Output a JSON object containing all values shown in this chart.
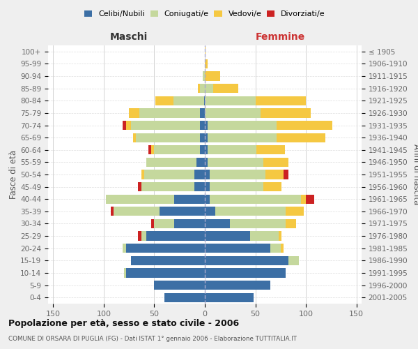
{
  "age_groups": [
    "0-4",
    "5-9",
    "10-14",
    "15-19",
    "20-24",
    "25-29",
    "30-34",
    "35-39",
    "40-44",
    "45-49",
    "50-54",
    "55-59",
    "60-64",
    "65-69",
    "70-74",
    "75-79",
    "80-84",
    "85-89",
    "90-94",
    "95-99",
    "100+"
  ],
  "birth_years": [
    "2001-2005",
    "1996-2000",
    "1991-1995",
    "1986-1990",
    "1981-1985",
    "1976-1980",
    "1971-1975",
    "1966-1970",
    "1961-1965",
    "1956-1960",
    "1951-1955",
    "1946-1950",
    "1941-1945",
    "1936-1940",
    "1931-1935",
    "1926-1930",
    "1921-1925",
    "1916-1920",
    "1911-1915",
    "1906-1910",
    "≤ 1905"
  ],
  "males": {
    "celibi": [
      40,
      50,
      78,
      73,
      78,
      58,
      30,
      45,
      30,
      10,
      10,
      8,
      5,
      5,
      5,
      5,
      1,
      0,
      0,
      0,
      0
    ],
    "coniugati": [
      0,
      0,
      2,
      0,
      3,
      5,
      20,
      45,
      68,
      53,
      50,
      50,
      45,
      63,
      68,
      60,
      30,
      5,
      2,
      0,
      0
    ],
    "vedovi": [
      0,
      0,
      0,
      0,
      0,
      0,
      0,
      0,
      0,
      0,
      3,
      0,
      3,
      3,
      5,
      10,
      18,
      2,
      0,
      0,
      0
    ],
    "divorziati": [
      0,
      0,
      0,
      0,
      0,
      3,
      3,
      3,
      0,
      3,
      0,
      0,
      3,
      0,
      3,
      0,
      0,
      0,
      0,
      0,
      0
    ]
  },
  "females": {
    "nubili": [
      48,
      65,
      80,
      83,
      65,
      45,
      25,
      10,
      5,
      5,
      5,
      3,
      3,
      3,
      3,
      0,
      0,
      0,
      0,
      0,
      0
    ],
    "coniugate": [
      0,
      0,
      0,
      10,
      10,
      28,
      55,
      70,
      90,
      53,
      55,
      55,
      48,
      68,
      68,
      55,
      50,
      8,
      0,
      0,
      0
    ],
    "vedove": [
      0,
      0,
      0,
      0,
      3,
      3,
      10,
      18,
      5,
      18,
      18,
      25,
      28,
      48,
      55,
      50,
      50,
      25,
      15,
      3,
      1
    ],
    "divorziate": [
      0,
      0,
      0,
      0,
      0,
      0,
      0,
      0,
      8,
      0,
      5,
      0,
      0,
      0,
      0,
      0,
      0,
      0,
      0,
      0,
      0
    ]
  },
  "colors": {
    "celibi_nubili": "#3c6fa5",
    "coniugati_e": "#c5d89d",
    "vedovi_e": "#f5c842",
    "divorziati_e": "#cc2222"
  },
  "title": "Popolazione per età, sesso e stato civile - 2006",
  "subtitle": "COMUNE DI ORSARA DI PUGLIA (FG) - Dati ISTAT 1° gennaio 2006 - Elaborazione TUTTITALIA.IT",
  "xlabel_left": "Maschi",
  "xlabel_right": "Femmine",
  "ylabel_left": "Fasce di età",
  "ylabel_right": "Anni di nascita",
  "xlim": 155,
  "background_color": "#efefef",
  "plot_background": "#ffffff",
  "grid_color": "#cccccc"
}
